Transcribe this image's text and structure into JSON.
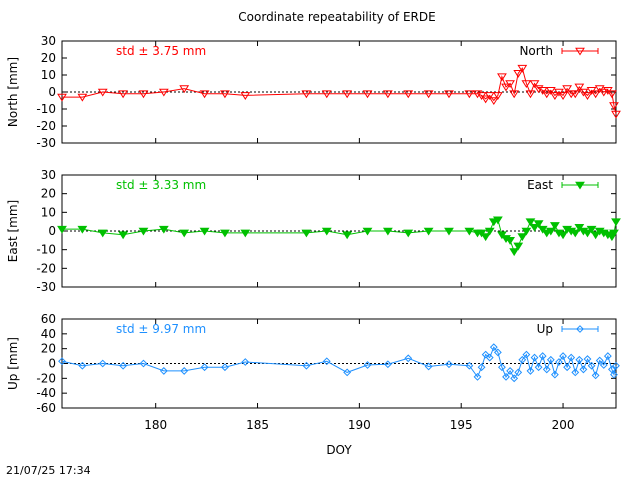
{
  "title": "Coordinate repeatability of ERDE",
  "timestamp": "21/07/25 17:34",
  "chart_data": [
    {
      "type": "line",
      "title": "",
      "ylabel": "North [mm]",
      "xlabel": "",
      "xlim": [
        175.4,
        202.6
      ],
      "ylim": [
        -30,
        30
      ],
      "yticks": [
        "30",
        "20",
        "10",
        "0",
        "-10",
        "-20",
        "-30"
      ],
      "xticks": [],
      "grid": false,
      "legend": "top-right",
      "annotation": "std ± 3.75 mm",
      "series": [
        {
          "name": "North",
          "color": "#ff0000",
          "marker": "triangle-down-open",
          "x": [
            175.4,
            176.4,
            177.4,
            178.4,
            179.4,
            180.4,
            181.4,
            182.4,
            183.4,
            184.4,
            187.4,
            188.4,
            189.4,
            190.4,
            191.4,
            192.4,
            193.4,
            194.4,
            195.4,
            195.8,
            196.0,
            196.2,
            196.4,
            196.6,
            196.8,
            197.0,
            197.2,
            197.4,
            197.6,
            197.8,
            198.0,
            198.2,
            198.4,
            198.6,
            198.8,
            199.0,
            199.2,
            199.4,
            199.6,
            199.8,
            200.0,
            200.2,
            200.4,
            200.6,
            200.8,
            201.0,
            201.2,
            201.4,
            201.6,
            201.8,
            202.0,
            202.2,
            202.4,
            202.5,
            202.6
          ],
          "y": [
            -3,
            -3,
            0,
            -1,
            -1,
            0,
            2,
            -1,
            -1,
            -2,
            -1,
            -1,
            -1,
            -1,
            -1,
            -1,
            -1,
            -1,
            -1,
            -1,
            -2,
            -4,
            -2,
            -5,
            -2,
            9,
            3,
            5,
            -1,
            11,
            14,
            5,
            -1,
            5,
            2,
            1,
            -1,
            1,
            -2,
            0,
            -2,
            2,
            -1,
            -1,
            3,
            0,
            -2,
            1,
            -1,
            2,
            0,
            1,
            -1,
            -8,
            -13
          ]
        }
      ]
    },
    {
      "type": "line",
      "title": "",
      "ylabel": "East [mm]",
      "xlabel": "",
      "xlim": [
        175.4,
        202.6
      ],
      "ylim": [
        -30,
        30
      ],
      "yticks": [
        "30",
        "20",
        "10",
        "0",
        "-10",
        "-20",
        "-30"
      ],
      "xticks": [],
      "grid": false,
      "legend": "top-right",
      "annotation": "std ± 3.33 mm",
      "series": [
        {
          "name": "East",
          "color": "#00c000",
          "marker": "triangle-down-filled",
          "x": [
            175.4,
            176.4,
            177.4,
            178.4,
            179.4,
            180.4,
            181.4,
            182.4,
            183.4,
            184.4,
            187.4,
            188.4,
            189.4,
            190.4,
            191.4,
            192.4,
            193.4,
            194.4,
            195.4,
            195.8,
            196.0,
            196.2,
            196.4,
            196.6,
            196.8,
            197.0,
            197.2,
            197.4,
            197.6,
            197.8,
            198.0,
            198.2,
            198.4,
            198.6,
            198.8,
            199.0,
            199.2,
            199.4,
            199.6,
            199.8,
            200.0,
            200.2,
            200.4,
            200.6,
            200.8,
            201.0,
            201.2,
            201.4,
            201.6,
            201.8,
            202.0,
            202.2,
            202.4,
            202.5,
            202.6
          ],
          "y": [
            1,
            1,
            -1,
            -2,
            0,
            1,
            -1,
            0,
            -1,
            -1,
            -1,
            0,
            -2,
            0,
            0,
            -1,
            0,
            0,
            0,
            -1,
            -1,
            -3,
            0,
            5,
            6,
            -2,
            -4,
            -5,
            -11,
            -8,
            -3,
            0,
            5,
            2,
            4,
            1,
            -1,
            0,
            3,
            -1,
            -2,
            1,
            0,
            -1,
            2,
            0,
            -1,
            1,
            -2,
            0,
            -1,
            -2,
            -3,
            -1,
            5
          ]
        }
      ]
    },
    {
      "type": "line",
      "title": "",
      "ylabel": "Up [mm]",
      "xlabel": "DOY",
      "xlim": [
        175.4,
        202.6
      ],
      "ylim": [
        -60,
        60
      ],
      "yticks": [
        "60",
        "40",
        "20",
        "0",
        "-20",
        "-40",
        "-60"
      ],
      "xticks": [
        "180",
        "185",
        "190",
        "195",
        "200"
      ],
      "xtick_values": [
        180,
        185,
        190,
        195,
        200
      ],
      "grid": false,
      "legend": "top-right",
      "annotation": "std ± 9.97 mm",
      "series": [
        {
          "name": "Up",
          "color": "#1e90ff",
          "marker": "diamond-open",
          "x": [
            175.4,
            176.4,
            177.4,
            178.4,
            179.4,
            180.4,
            181.4,
            182.4,
            183.4,
            184.4,
            187.4,
            188.4,
            189.4,
            190.4,
            191.4,
            192.4,
            193.4,
            194.4,
            195.4,
            195.8,
            196.0,
            196.2,
            196.4,
            196.6,
            196.8,
            197.0,
            197.2,
            197.4,
            197.6,
            197.8,
            198.0,
            198.2,
            198.4,
            198.6,
            198.8,
            199.0,
            199.2,
            199.4,
            199.6,
            199.8,
            200.0,
            200.2,
            200.4,
            200.6,
            200.8,
            201.0,
            201.2,
            201.4,
            201.6,
            201.8,
            202.0,
            202.2,
            202.4,
            202.5,
            202.6
          ],
          "y": [
            3,
            -3,
            0,
            -3,
            0,
            -10,
            -10,
            -5,
            -5,
            2,
            -3,
            3,
            -12,
            -2,
            -1,
            7,
            -4,
            -1,
            -3,
            -18,
            -5,
            12,
            8,
            22,
            15,
            -5,
            -18,
            -10,
            -20,
            -12,
            5,
            12,
            -10,
            8,
            -5,
            10,
            -8,
            5,
            -15,
            2,
            10,
            -5,
            8,
            -12,
            5,
            -8,
            6,
            -3,
            -16,
            4,
            -2,
            10,
            -8,
            -15,
            -3
          ]
        }
      ]
    }
  ]
}
